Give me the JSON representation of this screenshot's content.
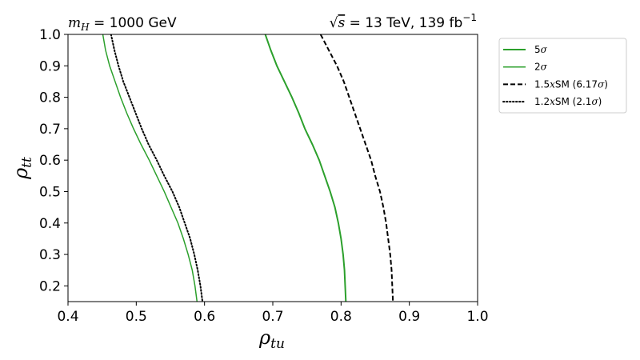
{
  "chart_data": {
    "type": "line",
    "title_left": "m_H = 1000 GeV",
    "title_left_parts": {
      "sym": "m",
      "sub": "H",
      "rest": " = 1000 GeV"
    },
    "title_right": "√s = 13 TeV, 139 fb⁻¹",
    "title_right_parts": {
      "sqrt": "√",
      "var": "s",
      "mid": " = 13 TeV, 139 fb",
      "sup": "−1"
    },
    "xlabel": "ρ_tu",
    "xlabel_parts": {
      "sym": "ρ",
      "sub": "tu"
    },
    "ylabel": "ρ_tt",
    "ylabel_parts": {
      "sym": "ρ",
      "sub": "tt"
    },
    "xlim": [
      0.4,
      1.0
    ],
    "ylim": [
      0.15,
      1.0
    ],
    "xticks": [
      "0.4",
      "0.5",
      "0.6",
      "0.7",
      "0.8",
      "0.9",
      "1.0"
    ],
    "yticks": [
      "0.2",
      "0.3",
      "0.4",
      "0.5",
      "0.6",
      "0.7",
      "0.8",
      "0.9",
      "1.0"
    ],
    "grid": false,
    "legend_placement": "outside-top-right",
    "series": [
      {
        "name": "5σ",
        "color": "#2ca02c",
        "style": "solid",
        "weight": "thick",
        "points": [
          [
            0.689,
            1.0
          ],
          [
            0.697,
            0.95
          ],
          [
            0.706,
            0.9
          ],
          [
            0.717,
            0.85
          ],
          [
            0.728,
            0.8
          ],
          [
            0.738,
            0.75
          ],
          [
            0.747,
            0.7
          ],
          [
            0.758,
            0.65
          ],
          [
            0.768,
            0.6
          ],
          [
            0.776,
            0.55
          ],
          [
            0.784,
            0.5
          ],
          [
            0.791,
            0.45
          ],
          [
            0.796,
            0.4
          ],
          [
            0.8,
            0.35
          ],
          [
            0.803,
            0.3
          ],
          [
            0.805,
            0.25
          ],
          [
            0.806,
            0.2
          ],
          [
            0.807,
            0.15
          ]
        ]
      },
      {
        "name": "2σ",
        "color": "#2ca02c",
        "style": "solid",
        "weight": "thin",
        "points": [
          [
            0.451,
            1.0
          ],
          [
            0.455,
            0.95
          ],
          [
            0.461,
            0.9
          ],
          [
            0.469,
            0.85
          ],
          [
            0.477,
            0.8
          ],
          [
            0.486,
            0.75
          ],
          [
            0.496,
            0.7
          ],
          [
            0.507,
            0.65
          ],
          [
            0.519,
            0.6
          ],
          [
            0.53,
            0.55
          ],
          [
            0.541,
            0.5
          ],
          [
            0.551,
            0.45
          ],
          [
            0.561,
            0.4
          ],
          [
            0.569,
            0.35
          ],
          [
            0.576,
            0.3
          ],
          [
            0.582,
            0.25
          ],
          [
            0.586,
            0.2
          ],
          [
            0.589,
            0.15
          ]
        ]
      },
      {
        "name": "1.5xSM (6.17σ)",
        "color": "#000000",
        "style": "dashed",
        "weight": "thick",
        "points": [
          [
            0.77,
            1.0
          ],
          [
            0.782,
            0.95
          ],
          [
            0.794,
            0.9
          ],
          [
            0.804,
            0.85
          ],
          [
            0.812,
            0.8
          ],
          [
            0.82,
            0.75
          ],
          [
            0.828,
            0.7
          ],
          [
            0.836,
            0.65
          ],
          [
            0.844,
            0.6
          ],
          [
            0.85,
            0.55
          ],
          [
            0.857,
            0.5
          ],
          [
            0.862,
            0.45
          ],
          [
            0.866,
            0.4
          ],
          [
            0.869,
            0.35
          ],
          [
            0.872,
            0.3
          ],
          [
            0.874,
            0.25
          ],
          [
            0.875,
            0.2
          ],
          [
            0.876,
            0.15
          ]
        ]
      },
      {
        "name": "1.2xSM (2.1σ)",
        "color": "#000000",
        "style": "dotted",
        "weight": "thick",
        "points": [
          [
            0.463,
            1.0
          ],
          [
            0.468,
            0.95
          ],
          [
            0.474,
            0.9
          ],
          [
            0.481,
            0.85
          ],
          [
            0.49,
            0.8
          ],
          [
            0.499,
            0.75
          ],
          [
            0.508,
            0.7
          ],
          [
            0.518,
            0.65
          ],
          [
            0.53,
            0.6
          ],
          [
            0.541,
            0.55
          ],
          [
            0.553,
            0.5
          ],
          [
            0.563,
            0.45
          ],
          [
            0.571,
            0.4
          ],
          [
            0.579,
            0.35
          ],
          [
            0.585,
            0.3
          ],
          [
            0.59,
            0.25
          ],
          [
            0.594,
            0.2
          ],
          [
            0.597,
            0.15
          ]
        ]
      }
    ],
    "legend_labels": [
      {
        "pre": "5",
        "sym": "σ",
        "post": ""
      },
      {
        "pre": "2",
        "sym": "σ",
        "post": ""
      },
      {
        "pre": "1.5",
        "sym": "x",
        "post": "SM (6.17",
        "sym2": "σ",
        "post2": ")"
      },
      {
        "pre": "1.2",
        "sym": "x",
        "post": "SM (2.1",
        "sym2": "σ",
        "post2": ")"
      }
    ]
  }
}
